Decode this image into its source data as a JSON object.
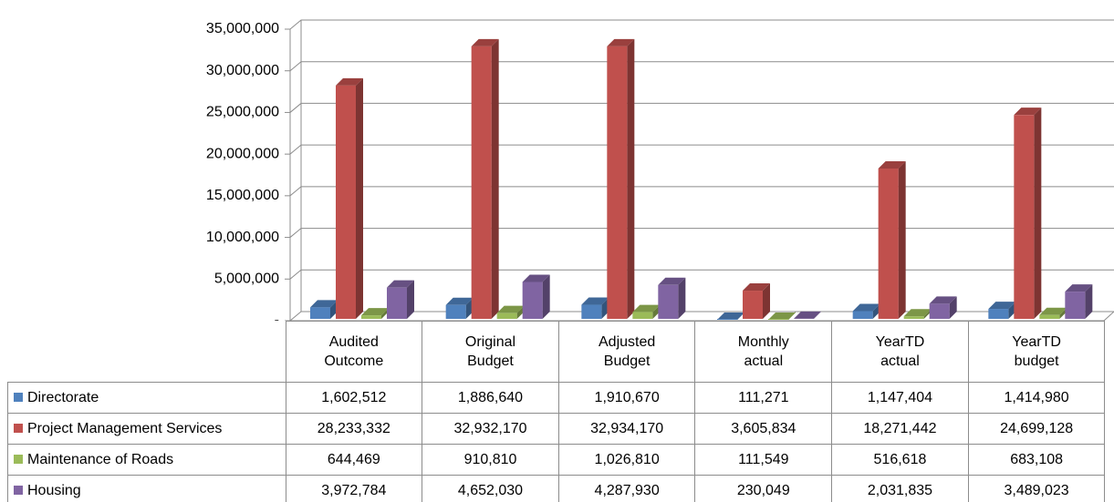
{
  "chart_data": {
    "type": "bar",
    "categories": [
      "Audited Outcome",
      "Original Budget",
      "Adjusted Budget",
      "Monthly actual",
      "YearTD actual",
      "YearTD budget"
    ],
    "series": [
      {
        "name": "Directorate",
        "color": "#4f81bd",
        "values": [
          1602512,
          1886640,
          1910670,
          111271,
          1147404,
          1414980
        ],
        "value_labels": [
          "1,602,512",
          "1,886,640",
          "1,910,670",
          "111,271",
          "1,147,404",
          "1,414,980"
        ]
      },
      {
        "name": "Project Management Services",
        "color": "#c0504d",
        "values": [
          28233332,
          32932170,
          32934170,
          3605834,
          18271442,
          24699128
        ],
        "value_labels": [
          "28,233,332",
          "32,932,170",
          "32,934,170",
          "3,605,834",
          "18,271,442",
          "24,699,128"
        ]
      },
      {
        "name": "Maintenance of Roads",
        "color": "#9bbb59",
        "values": [
          644469,
          910810,
          1026810,
          111549,
          516618,
          683108
        ],
        "value_labels": [
          "644,469",
          "910,810",
          "1,026,810",
          "111,549",
          "516,618",
          "683,108"
        ]
      },
      {
        "name": "Housing",
        "color": "#8064a2",
        "values": [
          3972784,
          4652030,
          4287930,
          230049,
          2031835,
          3489023
        ],
        "value_labels": [
          "3,972,784",
          "4,652,030",
          "4,287,930",
          "230,049",
          "2,031,835",
          "3,489,023"
        ]
      }
    ],
    "ylim": [
      0,
      35000000
    ],
    "yticks": [
      {
        "value": 0,
        "label": "-"
      },
      {
        "value": 5000000,
        "label": "5,000,000"
      },
      {
        "value": 10000000,
        "label": "10,000,000"
      },
      {
        "value": 15000000,
        "label": "15,000,000"
      },
      {
        "value": 20000000,
        "label": "20,000,000"
      },
      {
        "value": 25000000,
        "label": "25,000,000"
      },
      {
        "value": 30000000,
        "label": "30,000,000"
      },
      {
        "value": 35000000,
        "label": "35,000,000"
      }
    ],
    "grid": true
  }
}
